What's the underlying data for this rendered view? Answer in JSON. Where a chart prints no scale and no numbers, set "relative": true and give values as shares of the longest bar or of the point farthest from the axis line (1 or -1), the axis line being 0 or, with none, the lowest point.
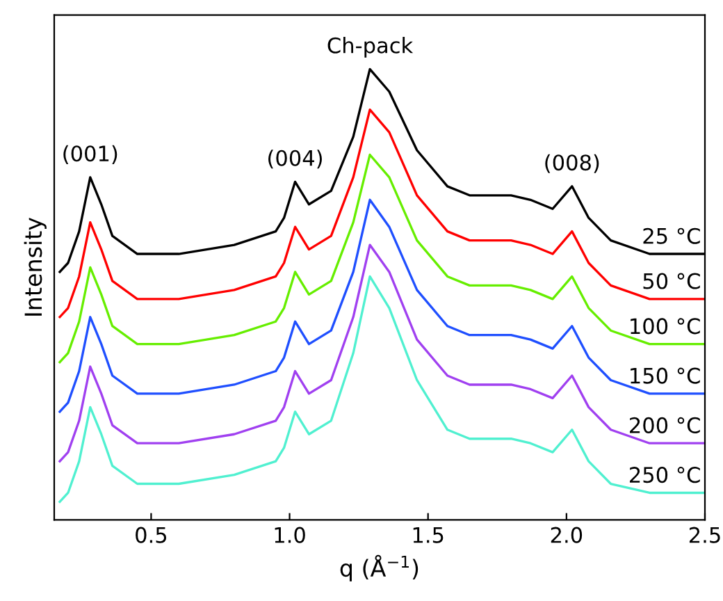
{
  "chart_data": {
    "type": "line",
    "relative": true,
    "xlabel": "q (Å$^{−1}$)",
    "ylabel": "Intensity",
    "xlim": [
      0.15,
      2.5
    ],
    "xticks": [
      0.5,
      {
        "value": 1.0,
        "label": "1.0"
      },
      1.5,
      {
        "value": 2.0,
        "label": "2.0"
      },
      2.5
    ],
    "tick_labels": "x",
    "x": [
      0.17,
      0.2,
      0.24,
      0.28,
      0.32,
      0.36,
      0.45,
      0.6,
      0.8,
      0.95,
      0.98,
      1.02,
      1.07,
      1.15,
      1.23,
      1.29,
      1.36,
      1.46,
      1.57,
      1.65,
      1.7,
      1.8,
      1.87,
      1.95,
      2.02,
      2.08,
      2.16,
      2.3,
      2.5
    ],
    "series": [
      {
        "name": "25 °C",
        "color": "#000000",
        "values": [
          0.55,
          0.57,
          0.64,
          0.76,
          0.7,
          0.63,
          0.59,
          0.59,
          0.61,
          0.64,
          0.67,
          0.75,
          0.7,
          0.73,
          0.85,
          1.0,
          0.95,
          0.82,
          0.74,
          0.72,
          0.72,
          0.72,
          0.71,
          0.69,
          0.74,
          0.67,
          0.62,
          0.59,
          0.59
        ]
      },
      {
        "name": "50 °C",
        "color": "#ff0000",
        "values": [
          0.45,
          0.47,
          0.54,
          0.66,
          0.6,
          0.53,
          0.49,
          0.49,
          0.51,
          0.54,
          0.57,
          0.65,
          0.6,
          0.63,
          0.76,
          0.91,
          0.86,
          0.72,
          0.64,
          0.62,
          0.62,
          0.62,
          0.61,
          0.59,
          0.64,
          0.57,
          0.52,
          0.49,
          0.49
        ]
      },
      {
        "name": "100 °C",
        "color": "#66ee00",
        "values": [
          0.35,
          0.37,
          0.44,
          0.56,
          0.5,
          0.43,
          0.39,
          0.39,
          0.41,
          0.44,
          0.47,
          0.55,
          0.5,
          0.53,
          0.66,
          0.81,
          0.76,
          0.62,
          0.54,
          0.52,
          0.52,
          0.52,
          0.51,
          0.49,
          0.54,
          0.47,
          0.42,
          0.39,
          0.39
        ]
      },
      {
        "name": "150 °C",
        "color": "#1f4fff",
        "values": [
          0.24,
          0.26,
          0.33,
          0.45,
          0.39,
          0.32,
          0.28,
          0.28,
          0.3,
          0.33,
          0.36,
          0.44,
          0.39,
          0.42,
          0.55,
          0.71,
          0.65,
          0.51,
          0.43,
          0.41,
          0.41,
          0.41,
          0.4,
          0.38,
          0.43,
          0.36,
          0.31,
          0.28,
          0.28
        ]
      },
      {
        "name": "200 °C",
        "color": "#a040f0",
        "values": [
          0.13,
          0.15,
          0.22,
          0.34,
          0.28,
          0.21,
          0.17,
          0.17,
          0.19,
          0.22,
          0.25,
          0.33,
          0.28,
          0.31,
          0.45,
          0.61,
          0.55,
          0.4,
          0.32,
          0.3,
          0.3,
          0.3,
          0.29,
          0.27,
          0.32,
          0.25,
          0.2,
          0.17,
          0.17
        ]
      },
      {
        "name": "250 °C",
        "color": "#50f0d0",
        "values": [
          0.04,
          0.06,
          0.13,
          0.25,
          0.19,
          0.12,
          0.08,
          0.08,
          0.1,
          0.13,
          0.16,
          0.24,
          0.19,
          0.22,
          0.37,
          0.54,
          0.47,
          0.31,
          0.2,
          0.18,
          0.18,
          0.18,
          0.17,
          0.15,
          0.2,
          0.13,
          0.08,
          0.06,
          0.06
        ]
      }
    ],
    "annotations": [
      {
        "text": "(001)",
        "x": 0.28,
        "y": 0.76
      },
      {
        "text": "(004)",
        "x": 1.02,
        "y": 0.75
      },
      {
        "text": "Ch-pack",
        "x": 1.29,
        "y": 1.0
      },
      {
        "text": "(008)",
        "x": 2.02,
        "y": 0.74
      }
    ]
  }
}
